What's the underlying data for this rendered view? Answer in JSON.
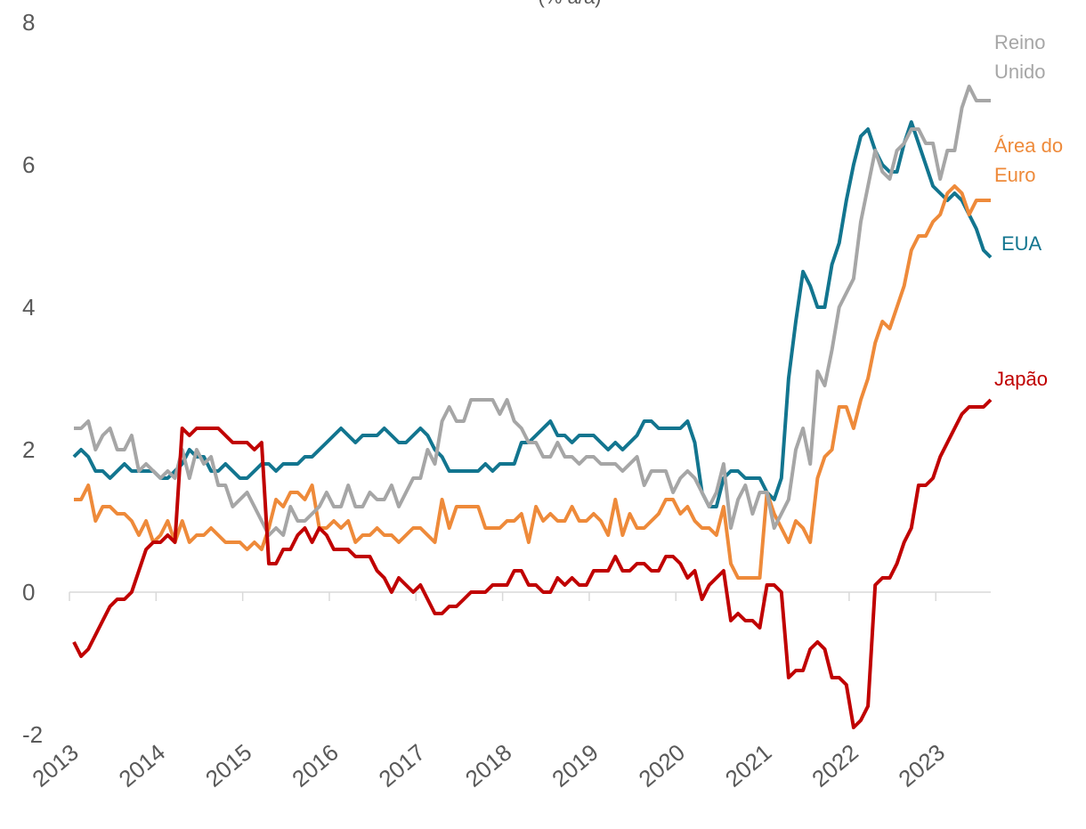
{
  "chart_data": {
    "type": "line",
    "subtitle": "(% a/a)",
    "categories": [
      "2013",
      null,
      null,
      null,
      null,
      null,
      null,
      null,
      null,
      null,
      null,
      null,
      "2014",
      null,
      null,
      null,
      null,
      null,
      null,
      null,
      null,
      null,
      null,
      null,
      "2015",
      null,
      null,
      null,
      null,
      null,
      null,
      null,
      null,
      null,
      null,
      null,
      "2016",
      null,
      null,
      null,
      null,
      null,
      null,
      null,
      null,
      null,
      null,
      null,
      "2017",
      null,
      null,
      null,
      null,
      null,
      null,
      null,
      null,
      null,
      null,
      null,
      "2018",
      null,
      null,
      null,
      null,
      null,
      null,
      null,
      null,
      null,
      null,
      null,
      "2019",
      null,
      null,
      null,
      null,
      null,
      null,
      null,
      null,
      null,
      null,
      null,
      "2020",
      null,
      null,
      null,
      null,
      null,
      null,
      null,
      null,
      null,
      null,
      null,
      "2021",
      null,
      null,
      null,
      null,
      null,
      null,
      null,
      null,
      null,
      null,
      null,
      "2022",
      null,
      null,
      null,
      null,
      null,
      null,
      null,
      null,
      null,
      null,
      null,
      "2023",
      null,
      null,
      null,
      null,
      null,
      null,
      null
    ],
    "ylim": [
      -2,
      8
    ],
    "yticks": [
      -2,
      0,
      2,
      4,
      6,
      8
    ],
    "grid": false,
    "series": [
      {
        "name": "EUA",
        "color": "#12758f",
        "values": [
          1.9,
          2.0,
          1.9,
          1.7,
          1.7,
          1.6,
          1.7,
          1.8,
          1.7,
          1.7,
          1.7,
          1.7,
          1.6,
          1.6,
          1.7,
          1.8,
          2.0,
          1.9,
          1.9,
          1.7,
          1.7,
          1.8,
          1.7,
          1.6,
          1.6,
          1.7,
          1.8,
          1.8,
          1.7,
          1.8,
          1.8,
          1.8,
          1.9,
          1.9,
          2.0,
          2.1,
          2.2,
          2.3,
          2.2,
          2.1,
          2.2,
          2.2,
          2.2,
          2.3,
          2.2,
          2.1,
          2.1,
          2.2,
          2.3,
          2.2,
          2.0,
          1.9,
          1.7,
          1.7,
          1.7,
          1.7,
          1.7,
          1.8,
          1.7,
          1.8,
          1.8,
          1.8,
          2.1,
          2.1,
          2.2,
          2.3,
          2.4,
          2.2,
          2.2,
          2.1,
          2.2,
          2.2,
          2.2,
          2.1,
          2.0,
          2.1,
          2.0,
          2.1,
          2.2,
          2.4,
          2.4,
          2.3,
          2.3,
          2.3,
          2.3,
          2.4,
          2.1,
          1.4,
          1.2,
          1.2,
          1.6,
          1.7,
          1.7,
          1.6,
          1.6,
          1.6,
          1.4,
          1.3,
          1.6,
          3.0,
          3.8,
          4.5,
          4.3,
          4.0,
          4.0,
          4.6,
          4.9,
          5.5,
          6.0,
          6.4,
          6.5,
          6.2,
          6.0,
          5.9,
          5.9,
          6.3,
          6.6,
          6.3,
          6.0,
          5.7,
          5.6,
          5.5,
          5.6,
          5.5,
          5.3,
          5.1,
          4.8,
          4.7
        ]
      },
      {
        "name": "Área do Euro",
        "color": "#ee8a3a",
        "values": [
          1.3,
          1.3,
          1.5,
          1.0,
          1.2,
          1.2,
          1.1,
          1.1,
          1.0,
          0.8,
          1.0,
          0.7,
          0.8,
          1.0,
          0.7,
          1.0,
          0.7,
          0.8,
          0.8,
          0.9,
          0.8,
          0.7,
          0.7,
          0.7,
          0.6,
          0.7,
          0.6,
          0.9,
          1.3,
          1.2,
          1.4,
          1.4,
          1.3,
          1.5,
          0.9,
          0.9,
          1.0,
          0.9,
          1.0,
          0.7,
          0.8,
          0.8,
          0.9,
          0.8,
          0.8,
          0.7,
          0.8,
          0.9,
          0.9,
          0.8,
          0.7,
          1.3,
          0.9,
          1.2,
          1.2,
          1.2,
          1.2,
          0.9,
          0.9,
          0.9,
          1.0,
          1.0,
          1.1,
          0.7,
          1.2,
          1.0,
          1.1,
          1.0,
          1.0,
          1.2,
          1.0,
          1.0,
          1.1,
          1.0,
          0.8,
          1.3,
          0.8,
          1.1,
          0.9,
          0.9,
          1.0,
          1.1,
          1.3,
          1.3,
          1.1,
          1.2,
          1.0,
          0.9,
          0.9,
          0.8,
          1.2,
          0.4,
          0.2,
          0.2,
          0.2,
          0.2,
          1.4,
          1.1,
          0.9,
          0.7,
          1.0,
          0.9,
          0.7,
          1.6,
          1.9,
          2.0,
          2.6,
          2.6,
          2.3,
          2.7,
          3.0,
          3.5,
          3.8,
          3.7,
          4.0,
          4.3,
          4.8,
          5.0,
          5.0,
          5.2,
          5.3,
          5.6,
          5.7,
          5.6,
          5.3,
          5.5,
          5.5,
          5.5
        ]
      },
      {
        "name": "Reino Unido",
        "color": "#a6a6a6",
        "values": [
          2.3,
          2.3,
          2.4,
          2.0,
          2.2,
          2.3,
          2.0,
          2.0,
          2.2,
          1.7,
          1.8,
          1.7,
          1.6,
          1.7,
          1.6,
          2.0,
          1.6,
          2.0,
          1.8,
          1.9,
          1.5,
          1.5,
          1.2,
          1.3,
          1.4,
          1.2,
          1.0,
          0.8,
          0.9,
          0.8,
          1.2,
          1.0,
          1.0,
          1.1,
          1.2,
          1.4,
          1.2,
          1.2,
          1.5,
          1.2,
          1.2,
          1.4,
          1.3,
          1.3,
          1.5,
          1.2,
          1.4,
          1.6,
          1.6,
          2.0,
          1.8,
          2.4,
          2.6,
          2.4,
          2.4,
          2.7,
          2.7,
          2.7,
          2.7,
          2.5,
          2.7,
          2.4,
          2.3,
          2.1,
          2.1,
          1.9,
          1.9,
          2.1,
          1.9,
          1.9,
          1.8,
          1.9,
          1.9,
          1.8,
          1.8,
          1.8,
          1.7,
          1.8,
          1.9,
          1.5,
          1.7,
          1.7,
          1.7,
          1.4,
          1.6,
          1.7,
          1.6,
          1.4,
          1.2,
          1.4,
          1.8,
          0.9,
          1.3,
          1.5,
          1.1,
          1.4,
          1.4,
          0.9,
          1.1,
          1.3,
          2.0,
          2.3,
          1.8,
          3.1,
          2.9,
          3.4,
          4.0,
          4.2,
          4.4,
          5.2,
          5.7,
          6.2,
          5.9,
          5.8,
          6.2,
          6.3,
          6.5,
          6.5,
          6.3,
          6.3,
          5.8,
          6.2,
          6.2,
          6.8,
          7.1,
          6.9,
          6.9,
          6.9
        ]
      },
      {
        "name": "Japão",
        "color": "#c00000",
        "values": [
          -0.7,
          -0.9,
          -0.8,
          -0.6,
          -0.4,
          -0.2,
          -0.1,
          -0.1,
          0.0,
          0.3,
          0.6,
          0.7,
          0.7,
          0.8,
          0.7,
          2.3,
          2.2,
          2.3,
          2.3,
          2.3,
          2.3,
          2.2,
          2.1,
          2.1,
          2.1,
          2.0,
          2.1,
          0.4,
          0.4,
          0.6,
          0.6,
          0.8,
          0.9,
          0.7,
          0.9,
          0.8,
          0.6,
          0.6,
          0.6,
          0.5,
          0.5,
          0.5,
          0.3,
          0.2,
          0.0,
          0.2,
          0.1,
          0.0,
          0.1,
          -0.1,
          -0.3,
          -0.3,
          -0.2,
          -0.2,
          -0.1,
          0.0,
          0.0,
          0.0,
          0.1,
          0.1,
          0.1,
          0.3,
          0.3,
          0.1,
          0.1,
          0.0,
          0.0,
          0.2,
          0.1,
          0.2,
          0.1,
          0.1,
          0.3,
          0.3,
          0.3,
          0.5,
          0.3,
          0.3,
          0.4,
          0.4,
          0.3,
          0.3,
          0.5,
          0.5,
          0.4,
          0.2,
          0.3,
          -0.1,
          0.1,
          0.2,
          0.3,
          -0.4,
          -0.3,
          -0.4,
          -0.4,
          -0.5,
          0.1,
          0.1,
          0.0,
          -1.2,
          -1.1,
          -1.1,
          -0.8,
          -0.7,
          -0.8,
          -1.2,
          -1.2,
          -1.3,
          -1.9,
          -1.8,
          -1.6,
          0.1,
          0.2,
          0.2,
          0.4,
          0.7,
          0.9,
          1.5,
          1.5,
          1.6,
          1.9,
          2.1,
          2.3,
          2.5,
          2.6,
          2.6,
          2.6,
          2.7
        ]
      }
    ]
  }
}
